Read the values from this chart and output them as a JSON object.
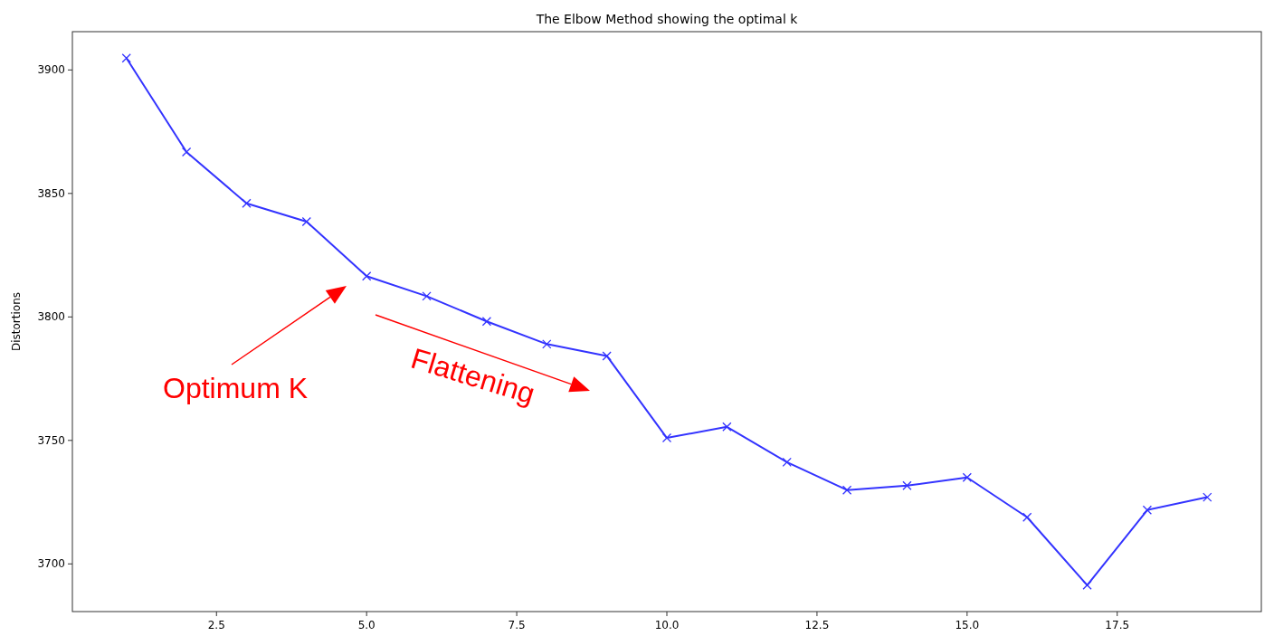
{
  "chart_data": {
    "type": "line",
    "title": "The Elbow Method showing the optimal k",
    "ylabel": "Distortions",
    "x": [
      1,
      2,
      3,
      4,
      5,
      6,
      7,
      8,
      9,
      10,
      11,
      12,
      13,
      14,
      15,
      16,
      17,
      18,
      19
    ],
    "series": [
      {
        "color": "#3333ff",
        "values": [
          3904.8,
          3866.8,
          3846,
          3838.6,
          3816.5,
          3808.4,
          3798.2,
          3789,
          3784.2,
          3751,
          3755.5,
          3741.2,
          3729.9,
          3731.7,
          3735,
          3718.9,
          3691.4,
          3721.8,
          3727
        ]
      }
    ],
    "xlim": [
      0.1,
      19.9
    ],
    "ylim": [
      3680.7,
      3915.5
    ],
    "xticks": [
      {
        "value": 2.5,
        "label": "2.5"
      },
      {
        "value": 5,
        "label": "5.0"
      },
      {
        "value": 7.5,
        "label": "7.5"
      },
      {
        "value": 10,
        "label": "10.0"
      },
      {
        "value": 12.5,
        "label": "12.5"
      },
      {
        "value": 15,
        "label": "15.0"
      },
      {
        "value": 17.5,
        "label": "17.5"
      }
    ],
    "yticks": [
      3700,
      3750,
      3800,
      3850,
      3900
    ],
    "marker": "cross",
    "line_style": "solid",
    "grid": false,
    "annotations": [
      "Optimum K",
      "Flattening"
    ]
  }
}
